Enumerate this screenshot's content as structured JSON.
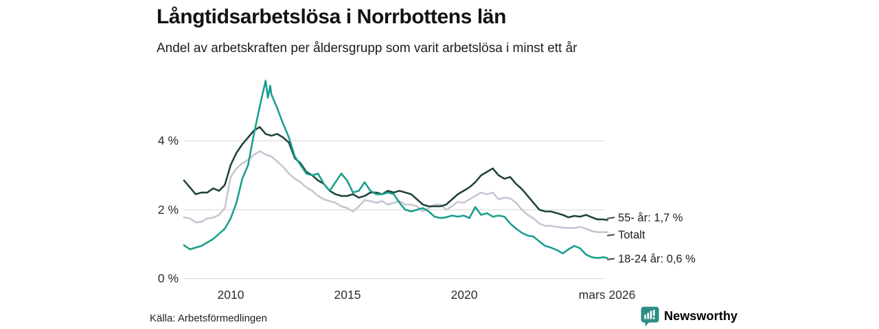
{
  "header": {
    "title": "Långtidsarbetslösa i Norrbottens län",
    "subtitle": "Andel av arbetskraften per åldersgrupp som varit arbetslösa i minst ett år"
  },
  "footer": {
    "source": "Källa: Arbetsförmedlingen",
    "branding": {
      "name": "Newsworthy",
      "color": "#2e8c86",
      "icon": "bar-chart-speech-bubble-icon"
    }
  },
  "colors": {
    "grid": "#dcdcdc",
    "text": "#1c1c1c",
    "axis_text": "#2b2b2b",
    "leader_dash": "#4a4a4a"
  },
  "chart_data": {
    "type": "line",
    "title": "Långtidsarbetslösa i Norrbottens län",
    "subtitle": "Andel av arbetskraften per åldersgrupp som varit arbetslösa i minst ett år",
    "unit": "% av arbetskraften",
    "grid": "horizontal-only",
    "legend_position": "right-end-labels",
    "x_axis": {
      "range": [
        2008.0,
        2026.17
      ],
      "ticks": [
        {
          "t": 2010,
          "label": "2010"
        },
        {
          "t": 2015,
          "label": "2015"
        },
        {
          "t": 2020,
          "label": "2020"
        },
        {
          "t": 2026.17,
          "label": "mars 2026"
        }
      ]
    },
    "y_axis": {
      "range": [
        0,
        6
      ],
      "ticks": [
        {
          "v": 0,
          "label": "0 %"
        },
        {
          "v": 2,
          "label": "2 %"
        },
        {
          "v": 4,
          "label": "4 %"
        }
      ]
    },
    "draw_order": [
      1,
      0,
      2
    ],
    "series": [
      {
        "name": "55- år",
        "end_label": "55- år: 1,7 %",
        "last_value": "1,7 %",
        "color": "#20443c",
        "points": [
          [
            2008.0,
            2.85
          ],
          [
            2008.25,
            2.65
          ],
          [
            2008.5,
            2.45
          ],
          [
            2008.75,
            2.5
          ],
          [
            2009.0,
            2.5
          ],
          [
            2009.25,
            2.62
          ],
          [
            2009.5,
            2.55
          ],
          [
            2009.75,
            2.72
          ],
          [
            2010.0,
            3.3
          ],
          [
            2010.25,
            3.65
          ],
          [
            2010.5,
            3.9
          ],
          [
            2010.75,
            4.1
          ],
          [
            2011.0,
            4.3
          ],
          [
            2011.25,
            4.4
          ],
          [
            2011.5,
            4.2
          ],
          [
            2011.75,
            4.15
          ],
          [
            2012.0,
            4.2
          ],
          [
            2012.25,
            4.1
          ],
          [
            2012.5,
            3.95
          ],
          [
            2012.75,
            3.5
          ],
          [
            2013.0,
            3.35
          ],
          [
            2013.25,
            3.1
          ],
          [
            2013.5,
            3.0
          ],
          [
            2013.75,
            2.85
          ],
          [
            2014.0,
            2.75
          ],
          [
            2014.25,
            2.55
          ],
          [
            2014.5,
            2.45
          ],
          [
            2014.75,
            2.4
          ],
          [
            2015.0,
            2.4
          ],
          [
            2015.25,
            2.45
          ],
          [
            2015.5,
            2.35
          ],
          [
            2015.75,
            2.4
          ],
          [
            2016.0,
            2.5
          ],
          [
            2016.25,
            2.5
          ],
          [
            2016.5,
            2.45
          ],
          [
            2016.75,
            2.55
          ],
          [
            2017.0,
            2.5
          ],
          [
            2017.25,
            2.55
          ],
          [
            2017.5,
            2.5
          ],
          [
            2017.75,
            2.45
          ],
          [
            2018.0,
            2.3
          ],
          [
            2018.25,
            2.15
          ],
          [
            2018.5,
            2.1
          ],
          [
            2018.75,
            2.1
          ],
          [
            2019.0,
            2.1
          ],
          [
            2019.25,
            2.15
          ],
          [
            2019.5,
            2.3
          ],
          [
            2019.75,
            2.45
          ],
          [
            2020.0,
            2.55
          ],
          [
            2020.25,
            2.65
          ],
          [
            2020.5,
            2.8
          ],
          [
            2020.75,
            3.0
          ],
          [
            2021.0,
            3.1
          ],
          [
            2021.25,
            3.2
          ],
          [
            2021.5,
            3.0
          ],
          [
            2021.75,
            2.9
          ],
          [
            2022.0,
            2.95
          ],
          [
            2022.25,
            2.75
          ],
          [
            2022.5,
            2.6
          ],
          [
            2022.75,
            2.4
          ],
          [
            2023.0,
            2.2
          ],
          [
            2023.25,
            2.0
          ],
          [
            2023.5,
            1.95
          ],
          [
            2023.75,
            1.95
          ],
          [
            2024.0,
            1.9
          ],
          [
            2024.25,
            1.85
          ],
          [
            2024.5,
            1.78
          ],
          [
            2024.75,
            1.82
          ],
          [
            2025.0,
            1.8
          ],
          [
            2025.25,
            1.85
          ],
          [
            2025.5,
            1.78
          ],
          [
            2025.75,
            1.72
          ],
          [
            2026.0,
            1.72
          ],
          [
            2026.17,
            1.7
          ]
        ]
      },
      {
        "name": "Totalt",
        "end_label": "Totalt",
        "last_value": "1,4 %",
        "color": "#c7c5d2",
        "points": [
          [
            2008.0,
            1.78
          ],
          [
            2008.25,
            1.75
          ],
          [
            2008.5,
            1.63
          ],
          [
            2008.75,
            1.65
          ],
          [
            2009.0,
            1.75
          ],
          [
            2009.25,
            1.77
          ],
          [
            2009.5,
            1.85
          ],
          [
            2009.75,
            2.05
          ],
          [
            2010.0,
            2.95
          ],
          [
            2010.25,
            3.2
          ],
          [
            2010.5,
            3.35
          ],
          [
            2010.75,
            3.45
          ],
          [
            2011.0,
            3.6
          ],
          [
            2011.25,
            3.7
          ],
          [
            2011.5,
            3.6
          ],
          [
            2011.75,
            3.55
          ],
          [
            2012.0,
            3.4
          ],
          [
            2012.25,
            3.25
          ],
          [
            2012.5,
            3.05
          ],
          [
            2012.75,
            2.9
          ],
          [
            2013.0,
            2.8
          ],
          [
            2013.25,
            2.65
          ],
          [
            2013.5,
            2.55
          ],
          [
            2013.75,
            2.4
          ],
          [
            2014.0,
            2.3
          ],
          [
            2014.25,
            2.25
          ],
          [
            2014.5,
            2.2
          ],
          [
            2014.75,
            2.1
          ],
          [
            2015.0,
            2.05
          ],
          [
            2015.25,
            1.95
          ],
          [
            2015.5,
            2.1
          ],
          [
            2015.75,
            2.28
          ],
          [
            2016.0,
            2.25
          ],
          [
            2016.25,
            2.2
          ],
          [
            2016.5,
            2.25
          ],
          [
            2016.75,
            2.15
          ],
          [
            2017.0,
            2.2
          ],
          [
            2017.25,
            2.25
          ],
          [
            2017.5,
            2.15
          ],
          [
            2017.75,
            2.15
          ],
          [
            2018.0,
            2.1
          ],
          [
            2018.25,
            1.95
          ],
          [
            2018.5,
            2.05
          ],
          [
            2018.75,
            2.15
          ],
          [
            2019.0,
            2.15
          ],
          [
            2019.25,
            2.0
          ],
          [
            2019.5,
            2.1
          ],
          [
            2019.75,
            2.23
          ],
          [
            2020.0,
            2.2
          ],
          [
            2020.25,
            2.3
          ],
          [
            2020.5,
            2.4
          ],
          [
            2020.75,
            2.5
          ],
          [
            2021.0,
            2.45
          ],
          [
            2021.25,
            2.5
          ],
          [
            2021.5,
            2.3
          ],
          [
            2021.75,
            2.35
          ],
          [
            2022.0,
            2.33
          ],
          [
            2022.25,
            2.2
          ],
          [
            2022.5,
            2.0
          ],
          [
            2022.75,
            1.85
          ],
          [
            2023.0,
            1.75
          ],
          [
            2023.25,
            1.6
          ],
          [
            2023.5,
            1.53
          ],
          [
            2023.75,
            1.53
          ],
          [
            2024.0,
            1.5
          ],
          [
            2024.25,
            1.48
          ],
          [
            2024.5,
            1.47
          ],
          [
            2024.75,
            1.47
          ],
          [
            2025.0,
            1.5
          ],
          [
            2025.25,
            1.45
          ],
          [
            2025.5,
            1.38
          ],
          [
            2025.75,
            1.35
          ],
          [
            2026.0,
            1.35
          ],
          [
            2026.17,
            1.35
          ]
        ]
      },
      {
        "name": "18-24 år",
        "end_label": "18-24 år: 0,6 %",
        "last_value": "0,6 %",
        "color": "#1a9e8e",
        "points": [
          [
            2008.0,
            0.97
          ],
          [
            2008.25,
            0.85
          ],
          [
            2008.5,
            0.9
          ],
          [
            2008.75,
            0.95
          ],
          [
            2009.0,
            1.05
          ],
          [
            2009.25,
            1.15
          ],
          [
            2009.5,
            1.3
          ],
          [
            2009.75,
            1.45
          ],
          [
            2010.0,
            1.75
          ],
          [
            2010.25,
            2.2
          ],
          [
            2010.5,
            2.9
          ],
          [
            2010.75,
            3.3
          ],
          [
            2011.0,
            4.2
          ],
          [
            2011.25,
            5.0
          ],
          [
            2011.5,
            5.75
          ],
          [
            2011.6,
            5.25
          ],
          [
            2011.7,
            5.6
          ],
          [
            2011.75,
            5.35
          ],
          [
            2012.0,
            4.95
          ],
          [
            2012.25,
            4.5
          ],
          [
            2012.5,
            4.1
          ],
          [
            2012.75,
            3.55
          ],
          [
            2013.0,
            3.3
          ],
          [
            2013.25,
            3.05
          ],
          [
            2013.5,
            3.0
          ],
          [
            2013.75,
            3.05
          ],
          [
            2014.0,
            2.75
          ],
          [
            2014.25,
            2.55
          ],
          [
            2014.5,
            2.8
          ],
          [
            2014.75,
            3.05
          ],
          [
            2015.0,
            2.85
          ],
          [
            2015.25,
            2.5
          ],
          [
            2015.5,
            2.55
          ],
          [
            2015.75,
            2.8
          ],
          [
            2016.0,
            2.55
          ],
          [
            2016.25,
            2.45
          ],
          [
            2016.5,
            2.45
          ],
          [
            2016.75,
            2.5
          ],
          [
            2017.0,
            2.45
          ],
          [
            2017.25,
            2.2
          ],
          [
            2017.5,
            2.0
          ],
          [
            2017.75,
            1.95
          ],
          [
            2018.0,
            2.0
          ],
          [
            2018.25,
            2.05
          ],
          [
            2018.5,
            1.95
          ],
          [
            2018.75,
            1.8
          ],
          [
            2019.0,
            1.76
          ],
          [
            2019.25,
            1.78
          ],
          [
            2019.5,
            1.83
          ],
          [
            2019.75,
            1.8
          ],
          [
            2020.0,
            1.83
          ],
          [
            2020.25,
            1.76
          ],
          [
            2020.5,
            2.08
          ],
          [
            2020.75,
            1.85
          ],
          [
            2021.0,
            1.9
          ],
          [
            2021.25,
            1.8
          ],
          [
            2021.5,
            1.83
          ],
          [
            2021.75,
            1.8
          ],
          [
            2022.0,
            1.6
          ],
          [
            2022.25,
            1.45
          ],
          [
            2022.5,
            1.33
          ],
          [
            2022.75,
            1.25
          ],
          [
            2023.0,
            1.22
          ],
          [
            2023.25,
            1.08
          ],
          [
            2023.5,
            0.95
          ],
          [
            2023.75,
            0.9
          ],
          [
            2024.0,
            0.83
          ],
          [
            2024.25,
            0.73
          ],
          [
            2024.5,
            0.85
          ],
          [
            2024.75,
            0.95
          ],
          [
            2025.0,
            0.88
          ],
          [
            2025.25,
            0.7
          ],
          [
            2025.5,
            0.62
          ],
          [
            2025.75,
            0.6
          ],
          [
            2026.0,
            0.62
          ],
          [
            2026.17,
            0.6
          ]
        ]
      }
    ]
  }
}
